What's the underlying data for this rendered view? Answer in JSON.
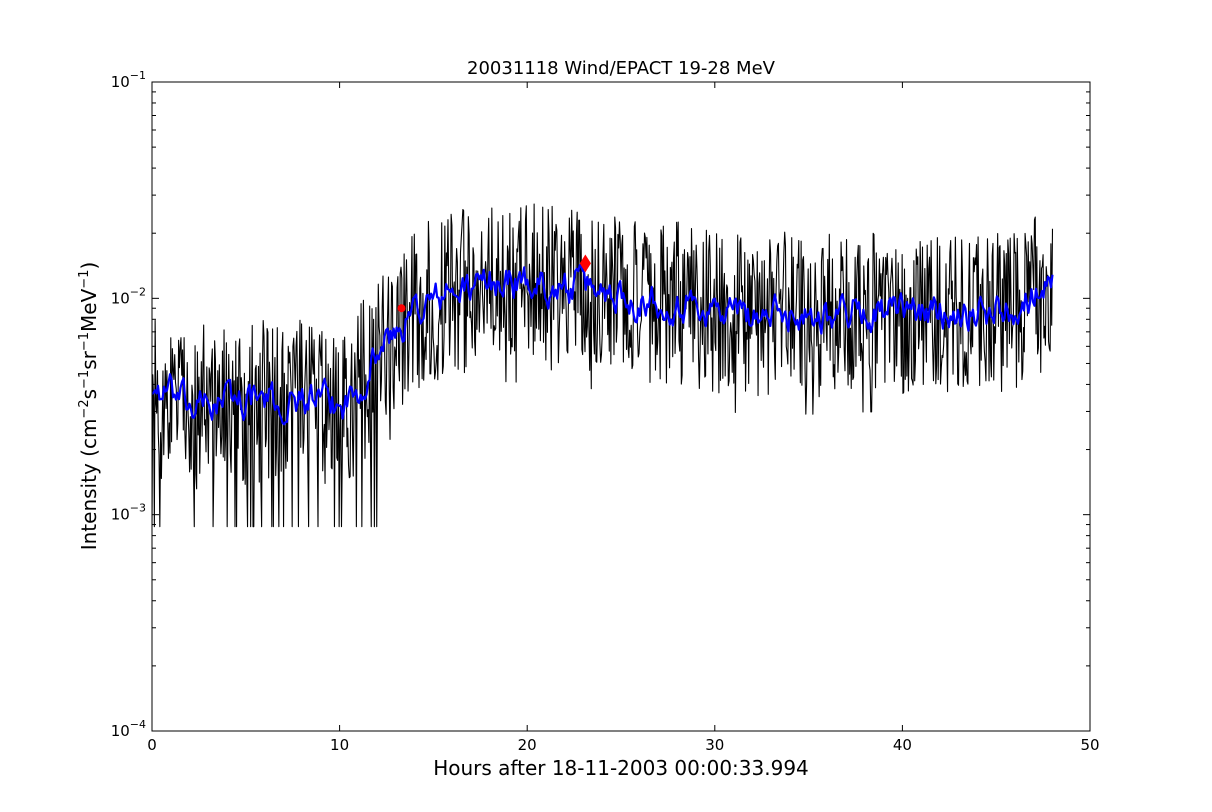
{
  "chart_data": {
    "type": "line",
    "title": "20031118 Wind/EPACT 19-28 MeV",
    "xlabel": "Hours after 18-11-2003 00:00:33.994",
    "ylabel_parts": [
      "Intensity (cm",
      "−2",
      "s",
      "−1",
      "sr",
      "−1",
      "MeV",
      "−1",
      ")"
    ],
    "xlim": [
      0,
      50
    ],
    "ylim": [
      0.0001,
      0.1
    ],
    "yscale": "log",
    "grid": false,
    "x_ticks": [
      {
        "value": 0,
        "label": "0"
      },
      {
        "value": 10,
        "label": "10"
      },
      {
        "value": 20,
        "label": "20"
      },
      {
        "value": 30,
        "label": "30"
      },
      {
        "value": 40,
        "label": "40"
      },
      {
        "value": 50,
        "label": "50"
      }
    ],
    "y_ticks": [
      {
        "value": 0.0001,
        "base": "10",
        "exp": "−4"
      },
      {
        "value": 0.001,
        "base": "10",
        "exp": "−3"
      },
      {
        "value": 0.01,
        "base": "10",
        "exp": "−2"
      },
      {
        "value": 0.1,
        "base": "10",
        "exp": "−1"
      }
    ],
    "series": [
      {
        "style": "raw",
        "color": "#000000",
        "x_range": [
          0,
          48
        ],
        "profile": [
          [
            0,
            0.0035
          ],
          [
            1,
            0.0034
          ],
          [
            2,
            0.0031
          ],
          [
            3,
            0.0032
          ],
          [
            4,
            0.0034
          ],
          [
            5,
            0.0033
          ],
          [
            6,
            0.0033
          ],
          [
            7,
            0.003
          ],
          [
            8,
            0.0034
          ],
          [
            9,
            0.0033
          ],
          [
            10,
            0.0031
          ],
          [
            11,
            0.0038
          ],
          [
            12,
            0.0055
          ],
          [
            13,
            0.0068
          ],
          [
            14,
            0.0088
          ],
          [
            15,
            0.0098
          ],
          [
            16,
            0.0103
          ],
          [
            17,
            0.011
          ],
          [
            18,
            0.0115
          ],
          [
            19,
            0.0118
          ],
          [
            20,
            0.0116
          ],
          [
            21,
            0.0112
          ],
          [
            22,
            0.0108
          ],
          [
            23,
            0.011
          ],
          [
            24,
            0.0108
          ],
          [
            25,
            0.0102
          ],
          [
            26,
            0.0098
          ],
          [
            27,
            0.0096
          ],
          [
            28,
            0.0094
          ],
          [
            29,
            0.0092
          ],
          [
            30,
            0.0088
          ],
          [
            31,
            0.0085
          ],
          [
            32,
            0.0083
          ],
          [
            33,
            0.0082
          ],
          [
            34,
            0.0085
          ],
          [
            35,
            0.0083
          ],
          [
            36,
            0.0084
          ],
          [
            37,
            0.0087
          ],
          [
            38,
            0.0085
          ],
          [
            39,
            0.0086
          ],
          [
            40,
            0.0084
          ],
          [
            41,
            0.0087
          ],
          [
            42,
            0.0085
          ],
          [
            43,
            0.0088
          ],
          [
            44,
            0.0085
          ],
          [
            45,
            0.0089
          ],
          [
            46,
            0.009
          ],
          [
            47,
            0.0105
          ],
          [
            48,
            0.0115
          ]
        ],
        "noise_factor": 0.55,
        "low_floor": 0.00088
      },
      {
        "style": "smoothed",
        "color": "#0000ff",
        "x_range": [
          0,
          48
        ],
        "profile": [
          [
            0,
            0.0038
          ],
          [
            1,
            0.0036
          ],
          [
            2,
            0.0031
          ],
          [
            3,
            0.0032
          ],
          [
            4,
            0.0035
          ],
          [
            5,
            0.0034
          ],
          [
            6,
            0.0034
          ],
          [
            7,
            0.0031
          ],
          [
            8,
            0.0035
          ],
          [
            9,
            0.0033
          ],
          [
            10,
            0.0031
          ],
          [
            11,
            0.0038
          ],
          [
            12,
            0.0058
          ],
          [
            13,
            0.0068
          ],
          [
            14,
            0.0088
          ],
          [
            15,
            0.0098
          ],
          [
            16,
            0.0105
          ],
          [
            17,
            0.0112
          ],
          [
            18,
            0.0118
          ],
          [
            19,
            0.012
          ],
          [
            20,
            0.0118
          ],
          [
            21,
            0.0114
          ],
          [
            22,
            0.011
          ],
          [
            23,
            0.0113
          ],
          [
            24,
            0.011
          ],
          [
            25,
            0.0103
          ],
          [
            26,
            0.0099
          ],
          [
            27,
            0.0097
          ],
          [
            28,
            0.0095
          ],
          [
            29,
            0.0093
          ],
          [
            30,
            0.0089
          ],
          [
            31,
            0.0086
          ],
          [
            32,
            0.0084
          ],
          [
            33,
            0.0083
          ],
          [
            34,
            0.0086
          ],
          [
            35,
            0.0084
          ],
          [
            36,
            0.0085
          ],
          [
            37,
            0.0088
          ],
          [
            38,
            0.0086
          ],
          [
            39,
            0.0087
          ],
          [
            40,
            0.0085
          ],
          [
            41,
            0.0088
          ],
          [
            42,
            0.0086
          ],
          [
            43,
            0.0089
          ],
          [
            44,
            0.0086
          ],
          [
            45,
            0.009
          ],
          [
            46,
            0.0092
          ],
          [
            47,
            0.0108
          ],
          [
            48,
            0.0118
          ]
        ],
        "noise_factor": 0.12
      }
    ],
    "markers": [
      {
        "x": 13.3,
        "y": 0.009,
        "color": "#ff0000",
        "shape": "circle"
      },
      {
        "x": 23.1,
        "y": 0.0145,
        "color": "#ff0000",
        "shape": "diamond"
      }
    ]
  }
}
